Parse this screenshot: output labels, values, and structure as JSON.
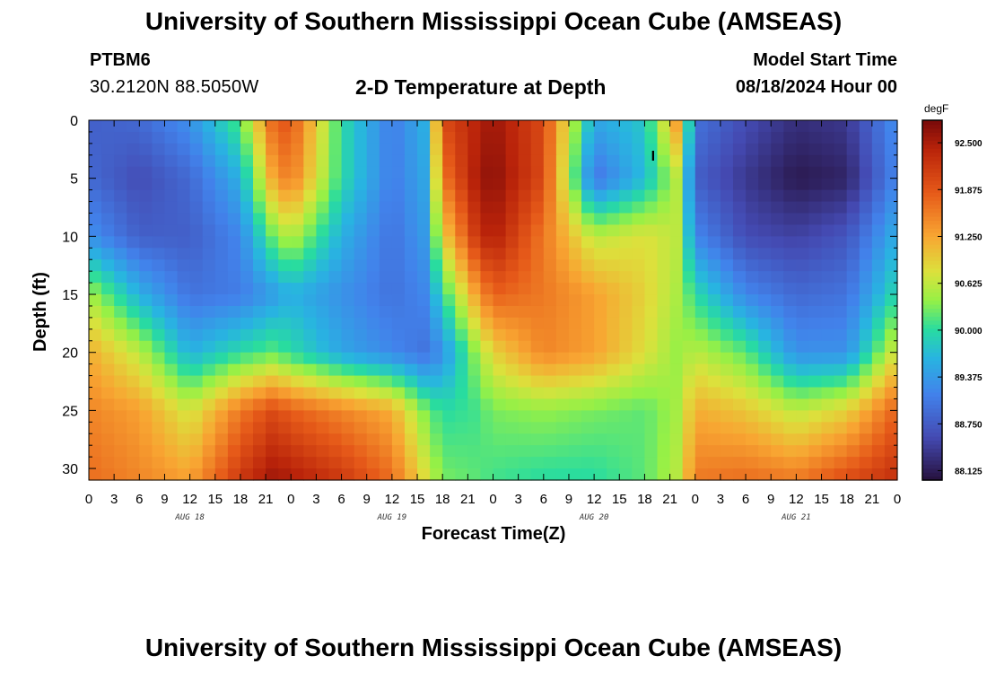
{
  "header": {
    "title": "University of Southern Mississippi Ocean Cube (AMSEAS)",
    "station": "PTBM6",
    "coords": "30.2120N  88.5050W",
    "subtitle": "2-D Temperature at Depth",
    "model_start_label": "Model Start Time",
    "model_start_value": "08/18/2024 Hour 00"
  },
  "footer": {
    "title": "University of Southern Mississippi Ocean Cube (AMSEAS)"
  },
  "chart_data": {
    "type": "heatmap",
    "title": "2-D Temperature at Depth",
    "xlabel": "Forecast Time(Z)",
    "ylabel": "Depth (ft)",
    "x_range_hours": [
      0,
      96
    ],
    "y_range_ft": [
      0,
      31
    ],
    "x_tick_labels": [
      "0",
      "3",
      "6",
      "9",
      "12",
      "15",
      "18",
      "21",
      "0",
      "3",
      "6",
      "9",
      "12",
      "15",
      "18",
      "21",
      "0",
      "3",
      "6",
      "9",
      "12",
      "15",
      "18",
      "21",
      "0",
      "3",
      "6",
      "9",
      "12",
      "15",
      "18",
      "21",
      "0"
    ],
    "day_labels": [
      {
        "text": "AUG 18",
        "hour": 12
      },
      {
        "text": "AUG 19",
        "hour": 36
      },
      {
        "text": "AUG 20",
        "hour": 60
      },
      {
        "text": "AUG 21",
        "hour": 84
      }
    ],
    "y_ticks": [
      0,
      5,
      10,
      15,
      20,
      25,
      30
    ],
    "y_tick_labels": [
      "0",
      "5",
      "10",
      "15",
      "20",
      "25",
      "30"
    ],
    "colorbar": {
      "units": "degF",
      "min": 88.0,
      "max": 92.8,
      "tick_values": [
        92.5,
        91.875,
        91.25,
        90.625,
        90.0,
        89.375,
        88.75,
        88.125
      ],
      "tick_labels": [
        "92.500",
        "91.875",
        "91.250",
        "90.625",
        "90.000",
        "89.375",
        "88.750",
        "88.125"
      ]
    },
    "temperature_degF": {
      "depths_ft": [
        0,
        5,
        10,
        15,
        20,
        25,
        31
      ],
      "hours": [
        0,
        6,
        12,
        18,
        22,
        24,
        30,
        36,
        40,
        42,
        46,
        48,
        54,
        60,
        66,
        70,
        72,
        78,
        84,
        90,
        96
      ],
      "values": [
        [
          88.8,
          88.9,
          89.3,
          90.2,
          91.8,
          91.9,
          90.0,
          89.1,
          89.6,
          92.0,
          92.4,
          92.6,
          92.0,
          89.5,
          89.8,
          91.4,
          89.0,
          88.6,
          88.3,
          88.4,
          89.3
        ],
        [
          88.9,
          88.6,
          88.9,
          89.6,
          91.3,
          91.6,
          90.0,
          89.1,
          89.5,
          91.6,
          92.5,
          92.7,
          92.0,
          89.0,
          89.7,
          90.6,
          88.8,
          88.4,
          88.1,
          88.2,
          89.2
        ],
        [
          89.3,
          88.8,
          88.8,
          89.2,
          90.3,
          90.6,
          89.6,
          89.0,
          89.4,
          90.9,
          92.2,
          92.5,
          91.6,
          90.6,
          90.8,
          90.6,
          89.2,
          88.6,
          88.5,
          88.7,
          89.6
        ],
        [
          90.5,
          89.6,
          89.0,
          89.1,
          89.4,
          89.6,
          89.3,
          89.0,
          89.2,
          90.0,
          91.3,
          91.8,
          91.6,
          91.3,
          90.9,
          90.5,
          90.0,
          89.2,
          88.9,
          89.0,
          90.0
        ],
        [
          91.2,
          90.6,
          89.6,
          90.0,
          90.2,
          90.0,
          89.5,
          89.2,
          89.0,
          89.3,
          90.4,
          90.9,
          91.5,
          91.3,
          90.8,
          90.4,
          90.6,
          90.2,
          89.3,
          89.3,
          90.8
        ],
        [
          91.5,
          91.3,
          90.7,
          91.6,
          92.0,
          91.8,
          91.5,
          91.2,
          90.3,
          90.0,
          90.1,
          90.3,
          90.4,
          90.3,
          90.2,
          90.5,
          91.2,
          91.0,
          90.6,
          90.9,
          91.8
        ],
        [
          91.7,
          91.5,
          91.3,
          92.2,
          92.6,
          92.5,
          92.2,
          91.7,
          90.8,
          90.3,
          90.2,
          90.1,
          90.0,
          90.0,
          90.2,
          90.6,
          91.6,
          91.7,
          91.6,
          92.0,
          92.3
        ]
      ]
    },
    "marker": {
      "label": "I",
      "hour": 67,
      "depth_ft": 3
    }
  }
}
